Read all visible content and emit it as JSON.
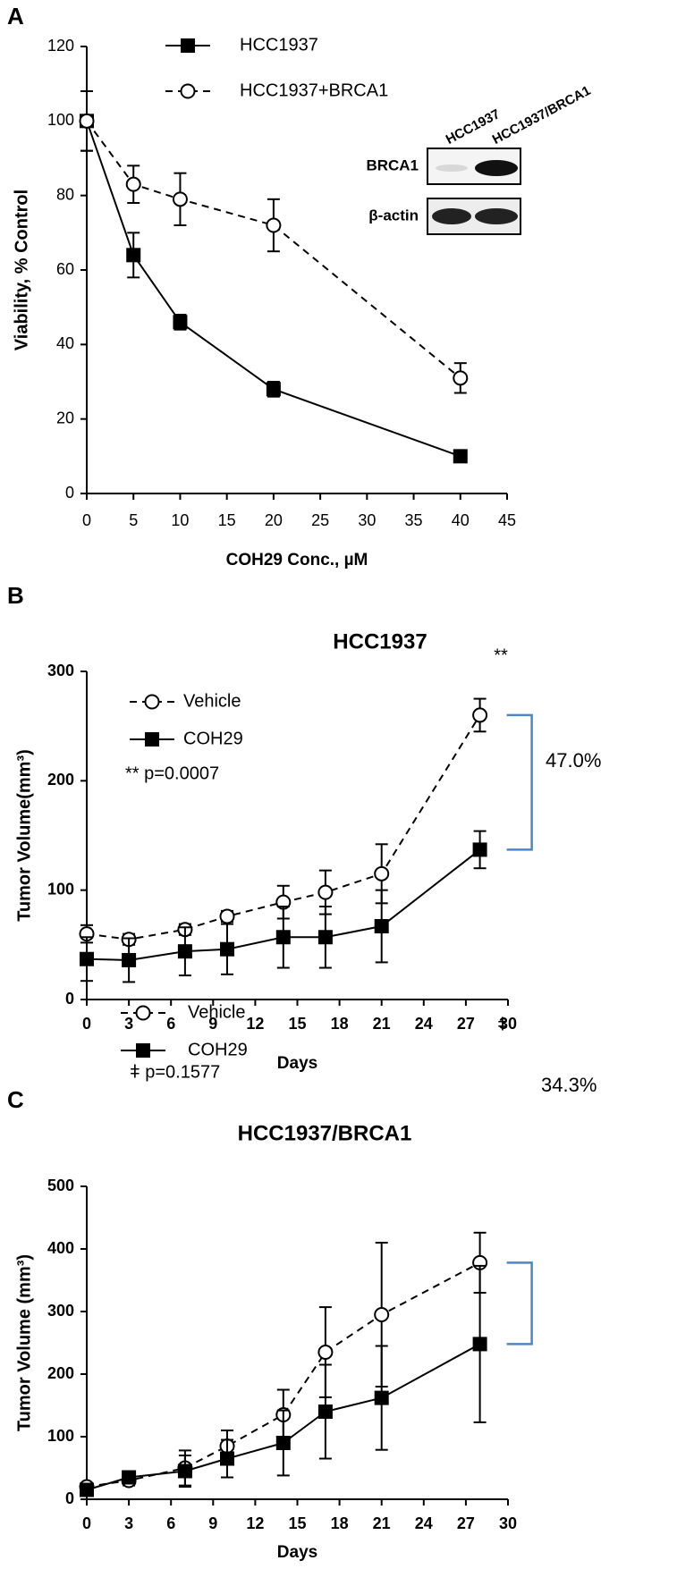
{
  "chart_data": [
    {
      "type": "line",
      "panel": "A",
      "xlabel": "COH29 Conc., µM",
      "ylabel": "Viability, % Control",
      "xlim": [
        0,
        45
      ],
      "xticks": [
        0,
        5,
        10,
        15,
        20,
        25,
        30,
        35,
        40,
        45
      ],
      "ylim": [
        0,
        120
      ],
      "yticks": [
        0,
        20,
        40,
        60,
        80,
        100,
        120
      ],
      "x": [
        0,
        5,
        10,
        20,
        40
      ],
      "series": [
        {
          "name": "HCC1937",
          "color": "#000000",
          "marker": "square",
          "dash": false,
          "values": [
            100,
            64,
            46,
            28,
            10
          ],
          "errors": [
            8,
            6,
            2,
            2,
            1
          ]
        },
        {
          "name": "HCC1937+BRCA1",
          "color": "#000000",
          "marker": "circle",
          "dash": true,
          "values": [
            100,
            83,
            79,
            72,
            31
          ],
          "errors": [
            8,
            5,
            7,
            7,
            4
          ]
        }
      ],
      "inset": {
        "lanes": [
          "HCC1937",
          "HCC1937/BRCA1"
        ],
        "rows": [
          "BRCA1",
          "β-actin"
        ]
      }
    },
    {
      "type": "line",
      "panel": "B",
      "title": "HCC1937",
      "xlabel": "Days",
      "ylabel": "Tumor Volume(mm³)",
      "xlim": [
        0,
        30
      ],
      "xticks": [
        0,
        3,
        6,
        9,
        12,
        15,
        18,
        21,
        24,
        27,
        30
      ],
      "ylim": [
        0,
        300
      ],
      "yticks": [
        0,
        100,
        200,
        300
      ],
      "x": [
        0,
        3,
        7,
        10,
        14,
        17,
        21,
        28
      ],
      "series": [
        {
          "name": "Vehicle",
          "color": "#000000",
          "marker": "circle",
          "dash": true,
          "values": [
            60,
            55,
            64,
            76,
            89,
            98,
            115,
            260
          ],
          "errors": [
            8,
            5,
            5,
            5,
            15,
            20,
            27,
            15
          ]
        },
        {
          "name": "COH29",
          "color": "#000000",
          "marker": "square",
          "dash": false,
          "values": [
            37,
            36,
            44,
            46,
            57,
            57,
            67,
            137
          ],
          "errors": [
            20,
            20,
            22,
            23,
            28,
            28,
            33,
            17
          ]
        }
      ],
      "annotations": [
        "**",
        "** p=0.0007",
        "47.0%"
      ]
    },
    {
      "type": "line",
      "panel": "C",
      "title": "HCC1937/BRCA1",
      "xlabel": "Days",
      "ylabel": "Tumor Volume (mm³)",
      "xlim": [
        0,
        30
      ],
      "xticks": [
        0,
        3,
        6,
        9,
        12,
        15,
        18,
        21,
        24,
        27,
        30
      ],
      "ylim": [
        0,
        500
      ],
      "yticks": [
        0,
        100,
        200,
        300,
        400,
        500
      ],
      "x": [
        0,
        3,
        7,
        10,
        14,
        17,
        21,
        28
      ],
      "series": [
        {
          "name": "Vehicle",
          "color": "#000000",
          "marker": "circle",
          "dash": true,
          "values": [
            20,
            30,
            50,
            85,
            135,
            235,
            295,
            378
          ],
          "errors": [
            5,
            8,
            28,
            25,
            40,
            72,
            115,
            48
          ]
        },
        {
          "name": "COH29",
          "color": "#000000",
          "marker": "square",
          "dash": false,
          "values": [
            15,
            35,
            45,
            65,
            90,
            140,
            162,
            248
          ],
          "errors": [
            5,
            8,
            25,
            30,
            52,
            75,
            83,
            125
          ]
        }
      ],
      "annotations": [
        "ǂ",
        "ǂ p=0.1577",
        "34.3%"
      ]
    }
  ]
}
